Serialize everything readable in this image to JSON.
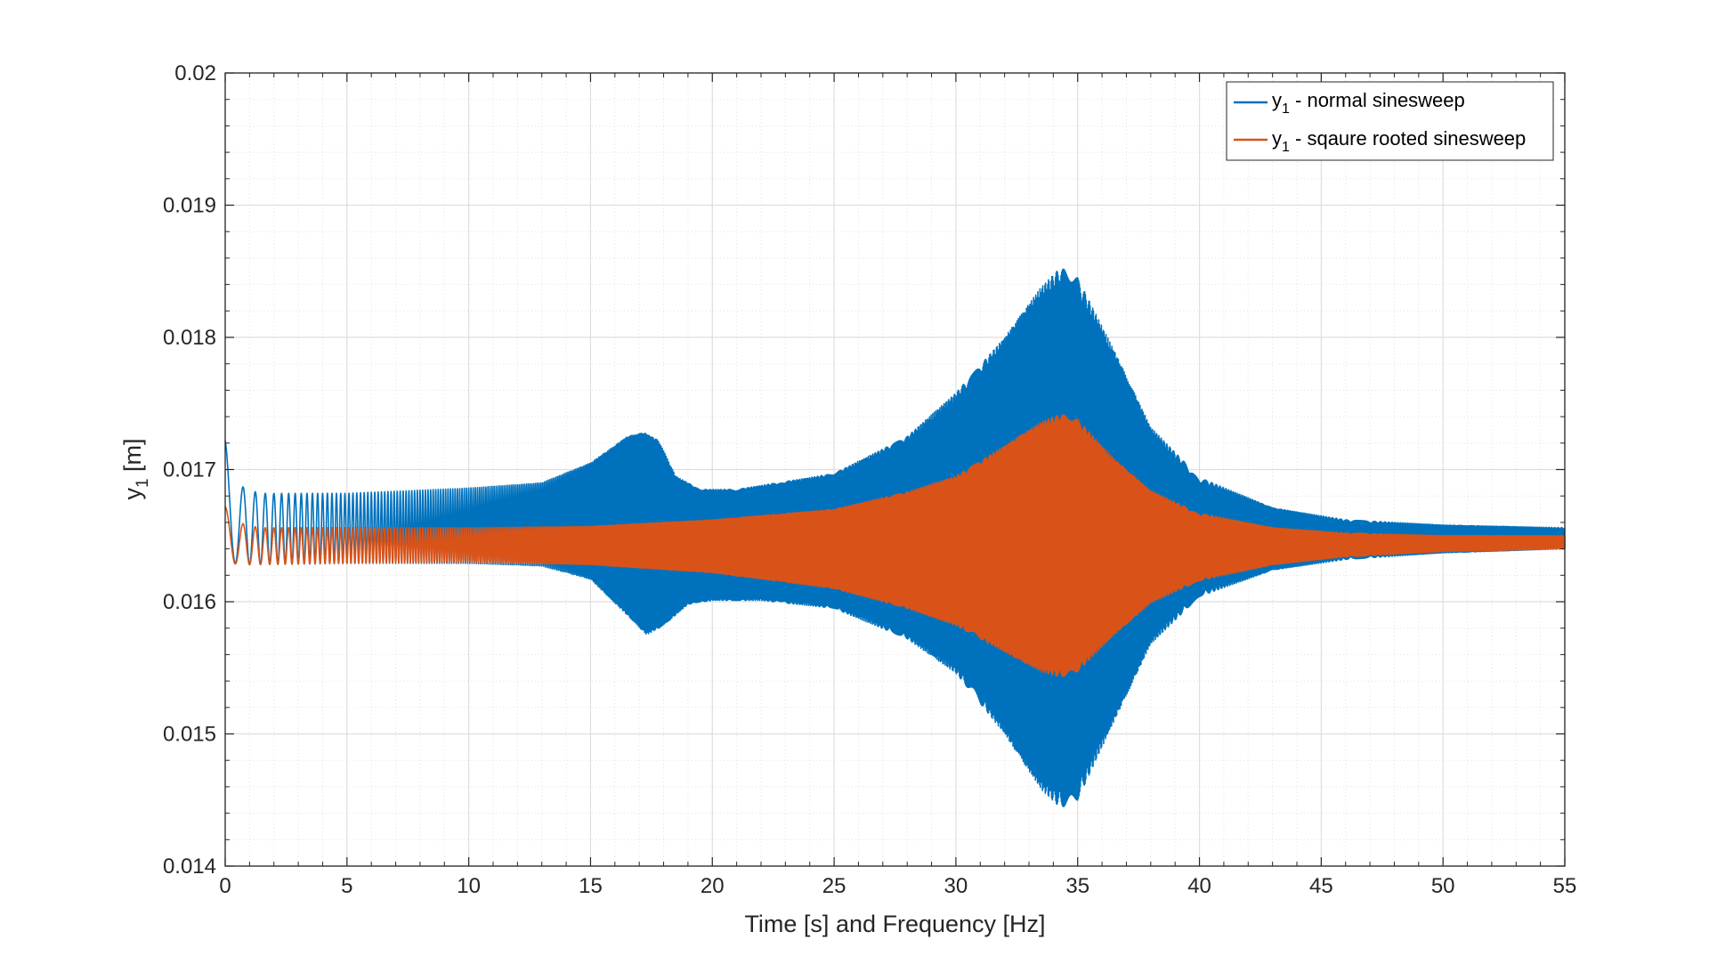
{
  "chart_data": {
    "type": "line",
    "title": "",
    "xlabel": "Time [s] and Frequency [Hz]",
    "ylabel": {
      "base": "y",
      "sub": "1",
      "rest": " [m]"
    },
    "xlim": [
      0,
      55
    ],
    "ylim": [
      0.014,
      0.02
    ],
    "xticks": [
      0,
      5,
      10,
      15,
      20,
      25,
      30,
      35,
      40,
      45,
      50,
      55
    ],
    "xtick_labels": [
      "0",
      "5",
      "10",
      "15",
      "20",
      "25",
      "30",
      "35",
      "40",
      "45",
      "50",
      "55"
    ],
    "yticks": [
      0.014,
      0.015,
      0.016,
      0.017,
      0.018,
      0.019,
      0.02
    ],
    "ytick_labels": [
      "0.014",
      "0.015",
      "0.016",
      "0.017",
      "0.018",
      "0.019",
      "0.02"
    ],
    "grid": true,
    "minor_grid": true,
    "legend_position": "top-right",
    "series": [
      {
        "name": {
          "base": "y",
          "sub": "1",
          "rest": " - normal sinesweep"
        },
        "color": "#0072BD",
        "upper_envelope": [
          [
            0,
            0.01722
          ],
          [
            0.3,
            0.0169
          ],
          [
            1.4,
            0.01682
          ],
          [
            5,
            0.01682
          ],
          [
            10,
            0.01686
          ],
          [
            13,
            0.0169
          ],
          [
            15,
            0.01705
          ],
          [
            16.5,
            0.01725
          ],
          [
            17.2,
            0.01728
          ],
          [
            17.8,
            0.01722
          ],
          [
            18.5,
            0.01695
          ],
          [
            19.5,
            0.01685
          ],
          [
            21,
            0.01685
          ],
          [
            25,
            0.01697
          ],
          [
            28,
            0.01725
          ],
          [
            30,
            0.01758
          ],
          [
            32,
            0.018
          ],
          [
            33.5,
            0.01838
          ],
          [
            34.3,
            0.01853
          ],
          [
            35,
            0.01845
          ],
          [
            36.5,
            0.0179
          ],
          [
            38,
            0.01732
          ],
          [
            40,
            0.01694
          ],
          [
            43,
            0.01671
          ],
          [
            46,
            0.01662
          ],
          [
            50,
            0.01658
          ],
          [
            55,
            0.01656
          ]
        ],
        "lower_envelope": [
          [
            0,
            0.0163
          ],
          [
            1,
            0.01628
          ],
          [
            5,
            0.01629
          ],
          [
            10,
            0.01629
          ],
          [
            13,
            0.01627
          ],
          [
            15,
            0.01617
          ],
          [
            16.5,
            0.0159
          ],
          [
            17.3,
            0.01575
          ],
          [
            18,
            0.01582
          ],
          [
            19,
            0.01598
          ],
          [
            20,
            0.01601
          ],
          [
            22,
            0.01601
          ],
          [
            25,
            0.01595
          ],
          [
            28,
            0.01572
          ],
          [
            30,
            0.01546
          ],
          [
            32,
            0.015
          ],
          [
            33.5,
            0.01458
          ],
          [
            34.3,
            0.01444
          ],
          [
            35,
            0.0145
          ],
          [
            36.5,
            0.0151
          ],
          [
            38,
            0.01568
          ],
          [
            40,
            0.01604
          ],
          [
            43,
            0.01624
          ],
          [
            46,
            0.01632
          ],
          [
            50,
            0.01637
          ],
          [
            55,
            0.0164
          ]
        ]
      },
      {
        "name": {
          "base": "y",
          "sub": "1",
          "rest": " - sqaure rooted sinesweep"
        },
        "color": "#D95319",
        "upper_envelope": [
          [
            0,
            0.01672
          ],
          [
            0.5,
            0.0166
          ],
          [
            1.4,
            0.01656
          ],
          [
            5,
            0.01656
          ],
          [
            10,
            0.01656
          ],
          [
            15,
            0.01657
          ],
          [
            20,
            0.01662
          ],
          [
            25,
            0.0167
          ],
          [
            28,
            0.01683
          ],
          [
            30,
            0.01695
          ],
          [
            32,
            0.01718
          ],
          [
            33.5,
            0.01736
          ],
          [
            34.3,
            0.01742
          ],
          [
            35,
            0.01738
          ],
          [
            36.5,
            0.01708
          ],
          [
            38,
            0.01684
          ],
          [
            40,
            0.01667
          ],
          [
            43,
            0.01656
          ],
          [
            46,
            0.01652
          ],
          [
            50,
            0.0165
          ],
          [
            55,
            0.0165
          ]
        ],
        "lower_envelope": [
          [
            0,
            0.01629
          ],
          [
            1,
            0.01628
          ],
          [
            5,
            0.01629
          ],
          [
            10,
            0.0163
          ],
          [
            15,
            0.01628
          ],
          [
            20,
            0.01622
          ],
          [
            25,
            0.0161
          ],
          [
            28,
            0.01595
          ],
          [
            30,
            0.01582
          ],
          [
            32,
            0.01562
          ],
          [
            33.5,
            0.01547
          ],
          [
            34.3,
            0.01543
          ],
          [
            35,
            0.01547
          ],
          [
            36.5,
            0.01575
          ],
          [
            38,
            0.01599
          ],
          [
            40,
            0.01616
          ],
          [
            43,
            0.01628
          ],
          [
            46,
            0.01634
          ],
          [
            50,
            0.01638
          ],
          [
            55,
            0.0164
          ]
        ]
      }
    ]
  }
}
